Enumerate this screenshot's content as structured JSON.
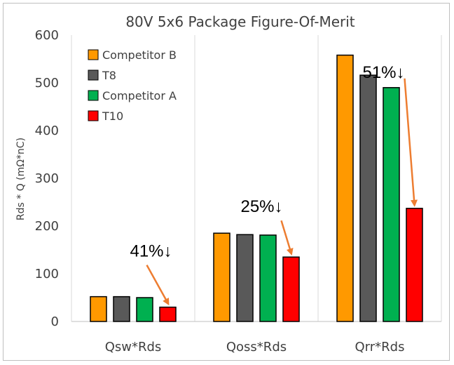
{
  "chart_data": {
    "type": "bar",
    "title": "80V 5x6 Package Figure-Of-Merit",
    "ylabel": "Rds * Q (mΩ*nC)",
    "xlabel": "",
    "ylim": [
      0,
      600
    ],
    "yticks": [
      0,
      100,
      200,
      300,
      400,
      500,
      600
    ],
    "categories": [
      "Qsw*Rds",
      "Qoss*Rds",
      "Qrr*Rds"
    ],
    "series": [
      {
        "name": "Competitor B",
        "color": "#FF9900",
        "values": [
          52,
          185,
          558
        ]
      },
      {
        "name": "T8",
        "color": "#595959",
        "values": [
          52,
          182,
          516
        ]
      },
      {
        "name": "Competitor A",
        "color": "#00B050",
        "values": [
          50,
          181,
          490
        ]
      },
      {
        "name": "T10",
        "color": "#FF0000",
        "values": [
          30,
          135,
          237
        ]
      }
    ],
    "grid": {
      "vertical_category_separators": true,
      "horizontal": false
    },
    "legend_position": "top-left",
    "annotations": [
      {
        "text": "41%↓",
        "category": "Qsw*Rds",
        "arrow_color": "#ED7D31"
      },
      {
        "text": "25%↓",
        "category": "Qoss*Rds",
        "arrow_color": "#ED7D31"
      },
      {
        "text": "51%↓",
        "category": "Qrr*Rds",
        "arrow_color": "#ED7D31"
      }
    ]
  }
}
